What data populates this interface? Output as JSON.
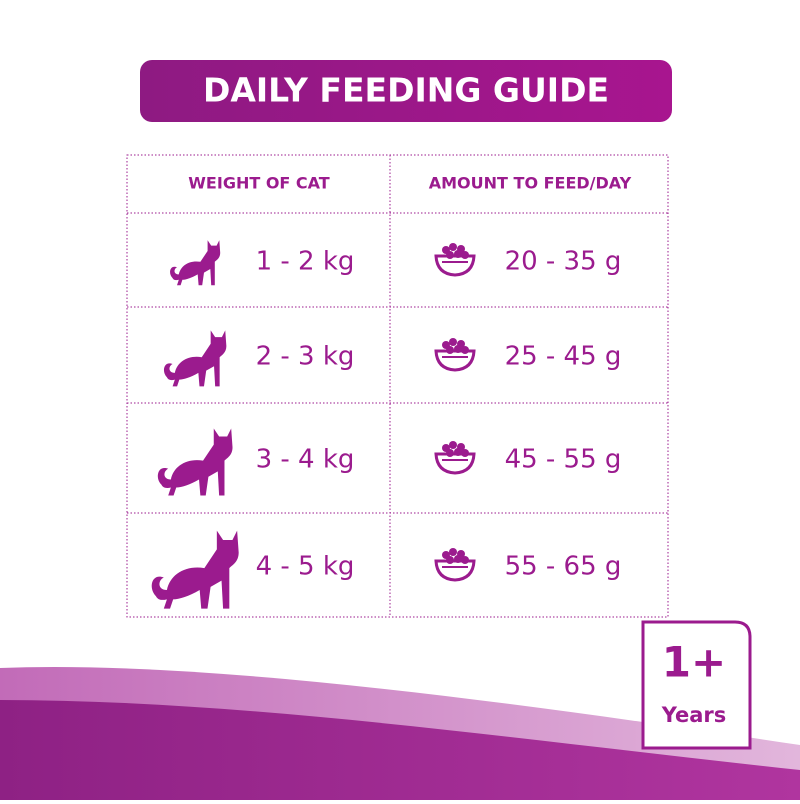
{
  "header": {
    "title": "DAILY FEEDING GUIDE"
  },
  "table": {
    "headers": [
      "WEIGHT OF CAT",
      "AMOUNT TO FEED/DAY"
    ],
    "rows": [
      [
        "1 - 2 kg",
        "20 - 35 g"
      ],
      [
        "2 - 3 kg",
        "25 - 45 g"
      ],
      [
        "3 - 4 kg",
        "45 - 55 g"
      ],
      [
        "4 - 5 kg",
        "55 - 65 g"
      ]
    ]
  },
  "badge": {
    "age": "1+",
    "unit": "Years"
  }
}
